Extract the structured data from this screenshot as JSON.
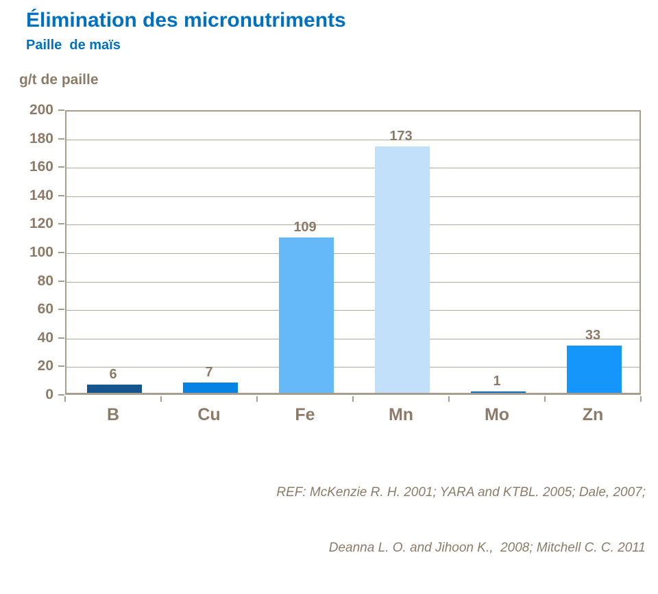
{
  "slide": {
    "title": "Élimination des micronutriments",
    "subtitle": "Paille  de maïs",
    "reference_line1": "REF: McKenzie R. H. 2001; YARA and KTBL. 2005; Dale, 2007;",
    "reference_line2": "Deanna L. O. and Jihoon K.,  2008; Mitchell C. C. 2011"
  },
  "colors": {
    "title_blue": "#0070C0",
    "text_taupe": "#8C7B68",
    "axis_line": "#A89C8C",
    "gridline": "#B3A897"
  },
  "chart_data": {
    "type": "bar",
    "title": "Élimination des micronutriments",
    "subtitle": "Paille de maïs",
    "xlabel": "",
    "ylabel": "g/t de paille",
    "categories": [
      "B",
      "Cu",
      "Fe",
      "Mn",
      "Mo",
      "Zn"
    ],
    "values": [
      6,
      7,
      109,
      173,
      1,
      33
    ],
    "data_labels": [
      "6",
      "7",
      "109",
      "173",
      "1",
      "33"
    ],
    "bar_colors": [
      "#15568F",
      "#0582E3",
      "#66B9F8",
      "#C3E0FA",
      "#0D6EC2",
      "#1496FB"
    ],
    "ylim": [
      0,
      200
    ],
    "yticks": [
      0,
      20,
      40,
      60,
      80,
      100,
      120,
      140,
      160,
      180,
      200
    ],
    "grid": true,
    "legend": false
  }
}
